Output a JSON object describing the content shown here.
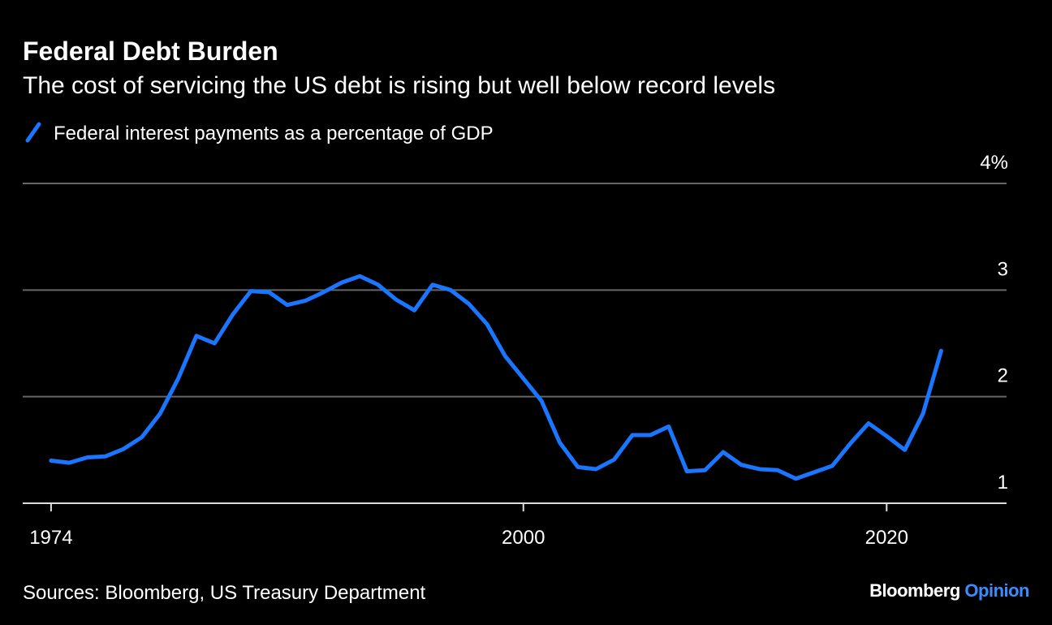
{
  "chart_data": {
    "type": "line",
    "title": "Federal Debt Burden",
    "subtitle": "The cost of servicing the US debt is rising but well below record levels",
    "x": [
      1974,
      1975,
      1976,
      1977,
      1978,
      1979,
      1980,
      1981,
      1982,
      1983,
      1984,
      1985,
      1986,
      1987,
      1988,
      1989,
      1990,
      1991,
      1992,
      1993,
      1994,
      1995,
      1996,
      1997,
      1998,
      1999,
      2000,
      2001,
      2002,
      2003,
      2004,
      2005,
      2006,
      2007,
      2008,
      2009,
      2010,
      2011,
      2012,
      2013,
      2014,
      2015,
      2016,
      2017,
      2018,
      2019,
      2020,
      2021,
      2022,
      2023
    ],
    "series": [
      {
        "name": "Federal interest payments as a percentage of GDP",
        "color": "#1a75ff",
        "values": [
          1.4,
          1.38,
          1.43,
          1.44,
          1.51,
          1.62,
          1.84,
          2.17,
          2.57,
          2.5,
          2.77,
          2.99,
          2.98,
          2.86,
          2.9,
          2.98,
          3.07,
          3.13,
          3.05,
          2.91,
          2.81,
          3.05,
          3.0,
          2.87,
          2.68,
          2.38,
          2.17,
          1.96,
          1.57,
          1.34,
          1.32,
          1.41,
          1.64,
          1.64,
          1.72,
          1.3,
          1.31,
          1.48,
          1.36,
          1.32,
          1.31,
          1.23,
          1.29,
          1.35,
          1.56,
          1.75,
          1.63,
          1.5,
          1.84,
          2.43
        ]
      }
    ],
    "xlim": [
      1972.44,
      2026.6
    ],
    "xticks": [
      1974,
      2000,
      2020
    ],
    "ylim": [
      1,
      4
    ],
    "yticks": [
      1,
      2,
      3,
      {
        "value": 4,
        "label": "4%"
      }
    ],
    "grid": true,
    "source": "Sources: Bloomberg, US Treasury Department",
    "branding": {
      "name": "Bloomberg",
      "section": "Opinion"
    }
  }
}
